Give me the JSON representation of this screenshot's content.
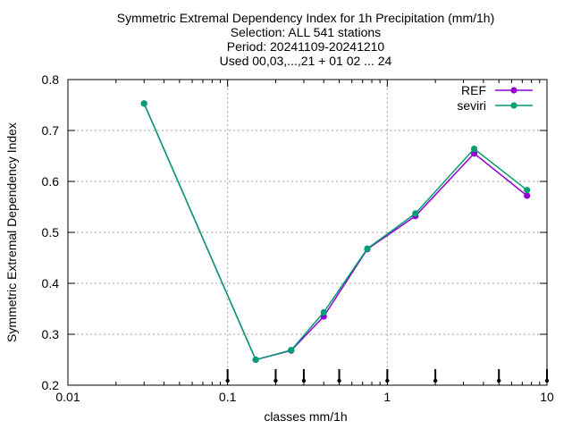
{
  "chart_data": {
    "type": "line",
    "title_lines": [
      "Symmetric Extremal Dependency Index  for 1h Precipitation (mm/1h)",
      "Selection: ALL    541 stations",
      "Period: 20241109-20241210",
      "Used 00,03,...,21 + 01 02 ... 24"
    ],
    "xlabel": "classes mm/1h",
    "ylabel": "Symmetric Extremal Dependency Index",
    "x_scale": "log",
    "xlim": [
      0.01,
      10
    ],
    "ylim": [
      0.2,
      0.8
    ],
    "x_ticks": [
      0.01,
      0.1,
      1,
      10
    ],
    "x_tick_labels": [
      "0.01",
      "0.1",
      "1",
      "10"
    ],
    "y_ticks": [
      0.2,
      0.3,
      0.4,
      0.5,
      0.6,
      0.7,
      0.8
    ],
    "y_tick_labels": [
      "0.2",
      "0.3",
      "0.4",
      "0.5",
      "0.6",
      "0.7",
      "0.8"
    ],
    "grid": true,
    "legend_position": "top-right",
    "threshold_markers": [
      0.1,
      0.2,
      0.3,
      0.5,
      1,
      2,
      5,
      10
    ],
    "series": [
      {
        "name": "REF",
        "color": "#9400d3",
        "x": [
          0.03,
          0.15,
          0.25,
          0.4,
          0.75,
          1.5,
          3.5,
          7.5
        ],
        "values": [
          0.753,
          0.25,
          0.268,
          0.335,
          0.467,
          0.532,
          0.655,
          0.572
        ]
      },
      {
        "name": "seviri",
        "color": "#009e73",
        "x": [
          0.03,
          0.15,
          0.25,
          0.4,
          0.75,
          1.5,
          3.5,
          7.5
        ],
        "values": [
          0.753,
          0.25,
          0.269,
          0.343,
          0.468,
          0.537,
          0.664,
          0.583
        ]
      }
    ]
  }
}
